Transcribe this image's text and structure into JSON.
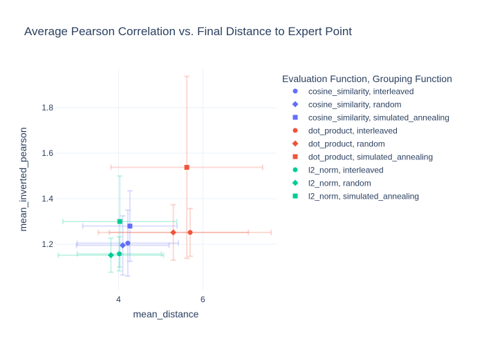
{
  "chart_data": {
    "type": "scatter",
    "title": "Average Pearson Correlation vs. Final Distance to Expert Point",
    "xlabel": "mean_distance",
    "ylabel": "mean_inverted_pearson",
    "xlim": [
      2.5,
      7.75
    ],
    "ylim": [
      1.0,
      1.97
    ],
    "x_ticks": [
      4,
      6
    ],
    "y_ticks": [
      1.2,
      1.4,
      1.6,
      1.8
    ],
    "grid": true,
    "legend_title": "Evaluation Function, Grouping Function",
    "legend_position": "right",
    "series": [
      {
        "name": "cosine_similarity, interleaved",
        "color": "#636efa",
        "symbol": "circle",
        "points": [
          {
            "x": 4.22,
            "y": 1.205,
            "x_err": 1.2,
            "y_err": 0.145
          }
        ]
      },
      {
        "name": "cosine_similarity, random",
        "color": "#636efa",
        "symbol": "diamond",
        "points": [
          {
            "x": 4.1,
            "y": 1.195,
            "x_err": 1.1,
            "y_err": 0.13
          }
        ]
      },
      {
        "name": "cosine_similarity, simulated_annealing",
        "color": "#636efa",
        "symbol": "square",
        "points": [
          {
            "x": 4.27,
            "y": 1.28,
            "x_err": 1.12,
            "y_err": 0.155
          }
        ]
      },
      {
        "name": "dot_product, interleaved",
        "color": "#ef553b",
        "symbol": "circle",
        "points": [
          {
            "x": 5.7,
            "y": 1.252,
            "x_err": 1.92,
            "y_err": 0.105
          }
        ]
      },
      {
        "name": "dot_product, random",
        "color": "#ef553b",
        "symbol": "diamond",
        "points": [
          {
            "x": 5.3,
            "y": 1.252,
            "x_err": 1.78,
            "y_err": 0.122
          }
        ]
      },
      {
        "name": "dot_product, simulated_annealing",
        "color": "#ef553b",
        "symbol": "square",
        "points": [
          {
            "x": 5.62,
            "y": 1.538,
            "x_err": 1.8,
            "y_err": 0.4
          }
        ]
      },
      {
        "name": "l2_norm, interleaved",
        "color": "#00cc96",
        "symbol": "circle",
        "points": [
          {
            "x": 4.02,
            "y": 1.158,
            "x_err": 1.0,
            "y_err": 0.075
          }
        ]
      },
      {
        "name": "l2_norm, random",
        "color": "#00cc96",
        "symbol": "diamond",
        "points": [
          {
            "x": 3.82,
            "y": 1.152,
            "x_err": 1.25,
            "y_err": 0.075
          }
        ]
      },
      {
        "name": "l2_norm, simulated_annealing",
        "color": "#00cc96",
        "symbol": "square",
        "points": [
          {
            "x": 4.03,
            "y": 1.3,
            "x_err": 1.35,
            "y_err": 0.2
          }
        ]
      }
    ]
  }
}
